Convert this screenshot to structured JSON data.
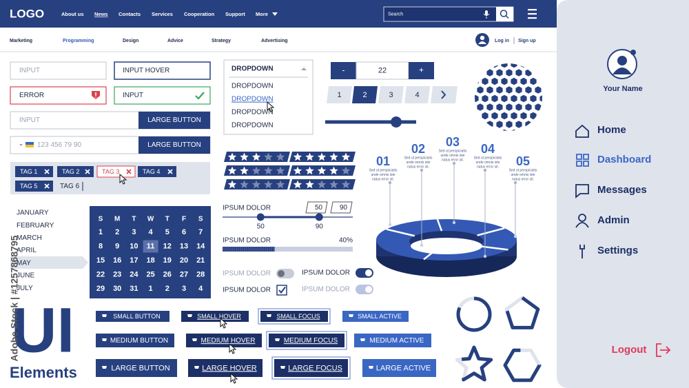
{
  "header": {
    "logo": "LOGO",
    "nav": [
      "About us",
      "News",
      "Contacts",
      "Services",
      "Cooperation",
      "Support",
      "More"
    ],
    "search": "Search"
  },
  "subnav": {
    "items": [
      "Marketing",
      "Programming",
      "Design",
      "Advice",
      "Strategy",
      "Advertising"
    ],
    "login": "Log in",
    "signup": "Sign up"
  },
  "sidebar": {
    "user": "Your Name",
    "menu": [
      "Home",
      "Dashboard",
      "Messages",
      "Admin",
      "Settings"
    ],
    "logout": "Logout"
  },
  "inputs": {
    "default": "INPUT",
    "hover": "INPUT HOVER",
    "error": "ERROR",
    "success": "INPUT",
    "with_button": "INPUT",
    "button": "LARGE BUTTON",
    "phone": "123 456 79 90",
    "phone_button": "LARGE BUTTON"
  },
  "tags": {
    "items": [
      "TAG 1",
      "TAG 2",
      "TAG 3",
      "TAG 4",
      "TAG 5"
    ],
    "input": "TAG 6"
  },
  "dropdown": {
    "title": "DROPDOWN",
    "options": [
      "DROPDOWN",
      "DROPDOWN",
      "DROPDOWN",
      "DROPDOWN"
    ]
  },
  "stepper": {
    "minus": "-",
    "value": 22,
    "plus": "+"
  },
  "pagination": [
    1,
    2,
    3,
    4
  ],
  "ratings": [
    3,
    5,
    2,
    4,
    1,
    2
  ],
  "range": {
    "label": "IPSUM DOLOR",
    "values": [
      50,
      90
    ]
  },
  "progress": {
    "label": "IPSUM DOLOR",
    "value": 40,
    "value_label": "40%"
  },
  "toggles": [
    "IPSUM DOLOR",
    "IPSUM DOLOR",
    "IPSUM DOLOR",
    "IPSUM DOLOR"
  ],
  "infographic": {
    "numbers": [
      "01",
      "02",
      "03",
      "04",
      "05"
    ],
    "text": [
      "Sed ut perspiciatis",
      "unde omnis iste",
      "natus error sit."
    ]
  },
  "months": [
    "JANUARY",
    "FEBRUARY",
    "MARCH",
    "APRIL",
    "MAY",
    "JUNE",
    "JULY"
  ],
  "calendar": {
    "weekdays": [
      "S",
      "M",
      "T",
      "W",
      "T",
      "F",
      "S"
    ],
    "days": [
      [
        1,
        2,
        3,
        4,
        5,
        6,
        7
      ],
      [
        8,
        9,
        10,
        11,
        12,
        13,
        14
      ],
      [
        15,
        16,
        17,
        18,
        19,
        20,
        21
      ],
      [
        22,
        23,
        24,
        25,
        26,
        27,
        28
      ],
      [
        29,
        30,
        31,
        1,
        2,
        3,
        4
      ]
    ],
    "selected": 11
  },
  "title": {
    "main": "UI",
    "sub": "Elements"
  },
  "watermark": "Adobe Stock | #1257868795",
  "buttons": [
    [
      "SMALL BUTTON",
      "SMALL HOVER",
      "SMALL FOCUS",
      "SMALL ACTIVE"
    ],
    [
      "MEDIUM BUTTON",
      "MEDIUM HOVER",
      "MEDIUM FOCUS",
      "MEDIUM ACTIVE"
    ],
    [
      "LARGE BUTTON",
      "LARGE HOVER",
      "LARGE FOCUS",
      "LARGE ACTIVE"
    ]
  ]
}
